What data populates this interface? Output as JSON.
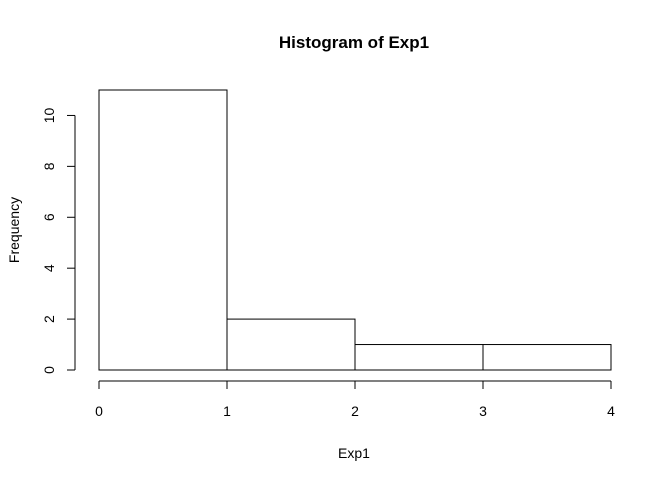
{
  "chart_data": {
    "type": "bar",
    "title": "Histogram of Exp1",
    "xlabel": "Exp1",
    "ylabel": "Frequency",
    "bins": [
      {
        "from": 0,
        "to": 1,
        "count": 11
      },
      {
        "from": 1,
        "to": 2,
        "count": 2
      },
      {
        "from": 2,
        "to": 3,
        "count": 1
      },
      {
        "from": 3,
        "to": 4,
        "count": 1
      }
    ],
    "xlim": [
      0,
      4
    ],
    "ylim": [
      0,
      11
    ],
    "xticks": [
      "0",
      "1",
      "2",
      "3",
      "4"
    ],
    "yticks": [
      "0",
      "2",
      "4",
      "6",
      "8",
      "10"
    ],
    "bar_fill": "#ffffff",
    "bar_stroke": "#000000",
    "grid": false,
    "legend": "none"
  }
}
